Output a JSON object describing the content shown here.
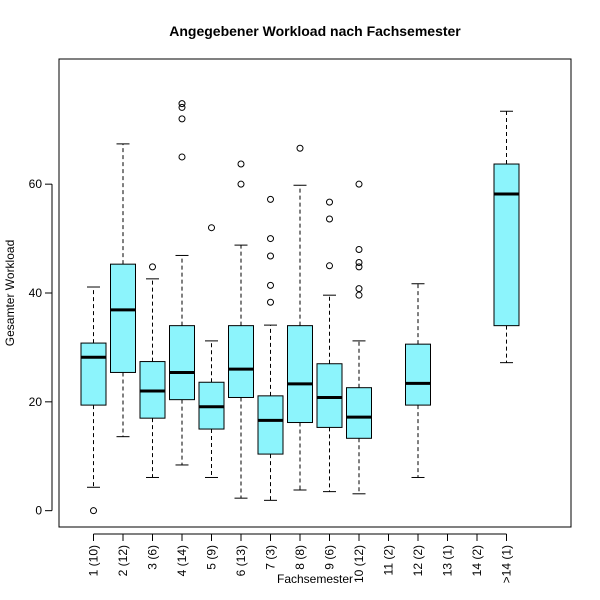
{
  "chart_data": {
    "type": "box",
    "title": "Angegebener Workload nach Fachsemester",
    "xlabel": "Fachsemester",
    "ylabel": "Gesamter Workload",
    "ylim": [
      -3,
      83
    ],
    "yticks": [
      0,
      20,
      40,
      60
    ],
    "colors": {
      "box_fill": "#8cf4fc",
      "box_stroke": "#000000"
    },
    "categories": [
      "1 (10)",
      "2 (12)",
      "3 (6)",
      "4 (14)",
      "5 (9)",
      "6 (13)",
      "7 (3)",
      "8 (8)",
      "9 (6)",
      "10 (12)",
      "11 (2)",
      "12 (2)",
      "13 (1)",
      "14 (2)",
      ">14 (1)"
    ],
    "boxes": [
      {
        "min": 4.3,
        "q1": 19.4,
        "median": 28.2,
        "q3": 30.8,
        "max": 41.1,
        "outliers": [
          0
        ]
      },
      {
        "min": 13.6,
        "q1": 25.4,
        "median": 36.9,
        "q3": 45.3,
        "max": 67.4,
        "outliers": []
      },
      {
        "min": 6.1,
        "q1": 17.0,
        "median": 22.0,
        "q3": 27.4,
        "max": 42.6,
        "outliers": [
          44.8
        ]
      },
      {
        "min": 8.4,
        "q1": 20.4,
        "median": 25.4,
        "q3": 34.0,
        "max": 46.9,
        "outliers": [
          65.0,
          72.0,
          74.1,
          74.8
        ]
      },
      {
        "min": 6.1,
        "q1": 15.0,
        "median": 19.1,
        "q3": 23.6,
        "max": 31.2,
        "outliers": [
          52.0
        ]
      },
      {
        "min": 2.3,
        "q1": 20.8,
        "median": 26.0,
        "q3": 34.0,
        "max": 48.8,
        "outliers": [
          60.0,
          63.7
        ]
      },
      {
        "min": 1.9,
        "q1": 10.4,
        "median": 16.6,
        "q3": 21.1,
        "max": 34.1,
        "outliers": [
          38.3,
          41.4,
          46.8,
          50.0,
          57.2
        ]
      },
      {
        "min": 3.8,
        "q1": 16.2,
        "median": 23.3,
        "q3": 34.0,
        "max": 59.8,
        "outliers": [
          66.6
        ]
      },
      {
        "min": 3.5,
        "q1": 15.3,
        "median": 20.8,
        "q3": 27.0,
        "max": 39.6,
        "outliers": [
          45.0,
          53.6,
          56.7
        ]
      },
      {
        "min": 3.1,
        "q1": 13.3,
        "median": 17.2,
        "q3": 22.6,
        "max": 31.2,
        "outliers": [
          39.6,
          40.8,
          44.8,
          45.6,
          48.0,
          60.0
        ]
      },
      null,
      {
        "min": 6.1,
        "q1": 19.4,
        "median": 23.4,
        "q3": 30.6,
        "max": 41.7,
        "outliers": []
      },
      null,
      null,
      {
        "min": 27.2,
        "q1": 34.0,
        "median": 58.2,
        "q3": 63.7,
        "max": 73.4,
        "outliers": []
      }
    ]
  }
}
